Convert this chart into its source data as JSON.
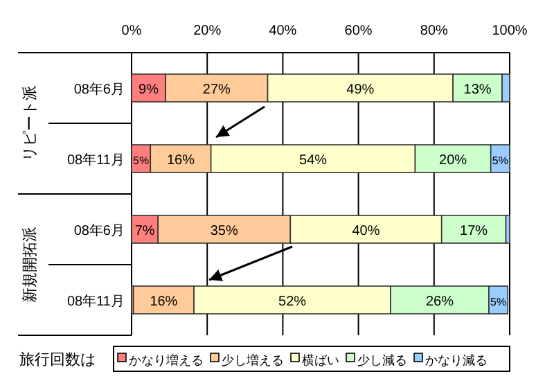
{
  "chart_data": {
    "type": "bar",
    "orientation": "horizontal",
    "stacked": true,
    "categories": [
      "08年6月",
      "08年11月",
      "08年6月",
      "08年11月"
    ],
    "annotations": [
      "リピート派",
      "新規開拓派"
    ],
    "legend_title": "旅行回数は",
    "legend": "bottom",
    "grid": "x",
    "xlim": [
      0,
      100
    ],
    "xticks": [
      {
        "value": 0,
        "label": "0%"
      },
      {
        "value": 20,
        "label": "20%"
      },
      {
        "value": 40,
        "label": "40%"
      },
      {
        "value": 60,
        "label": "60%"
      },
      {
        "value": 80,
        "label": "80%"
      },
      {
        "value": 100,
        "label": "100%"
      }
    ],
    "series": [
      {
        "name": "かなり増える",
        "color": "#ff7f7f",
        "values": [
          9,
          5,
          7,
          0.5
        ],
        "value_labels": [
          "9%",
          "5%",
          "7%",
          null
        ]
      },
      {
        "name": "少し増える",
        "color": "#ffcc99",
        "values": [
          27,
          16,
          35,
          16
        ],
        "value_labels": [
          "27%",
          "16%",
          "35%",
          "16%"
        ]
      },
      {
        "name": "横ばい",
        "color": "#ffffcc",
        "values": [
          49,
          54,
          40,
          52
        ],
        "value_labels": [
          "49%",
          "54%",
          "40%",
          "52%"
        ]
      },
      {
        "name": "少し減る",
        "color": "#ccffcc",
        "values": [
          13,
          20,
          17,
          26
        ],
        "value_labels": [
          "13%",
          "20%",
          "17%",
          "26%"
        ]
      },
      {
        "name": "かなり減る",
        "color": "#99ccff",
        "values": [
          2,
          5,
          1,
          5
        ],
        "value_labels": [
          null,
          "5%",
          null,
          "5%"
        ]
      }
    ]
  }
}
